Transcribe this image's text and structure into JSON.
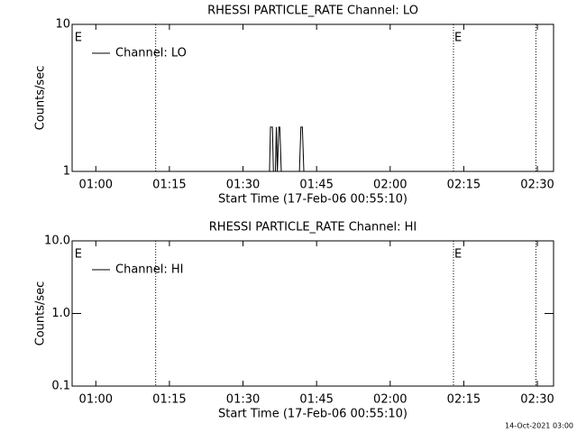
{
  "chart_data": [
    {
      "type": "line",
      "title": "RHESSI PARTICLE_RATE Channel: LO",
      "x_label": "Start Time (17-Feb-06 00:55:10)",
      "y_label": "Counts/sec",
      "log_y": true,
      "legend": "top-left",
      "xlim": [
        55.17,
        153.3
      ],
      "ylim": [
        1,
        10
      ],
      "xticks": [
        {
          "value": 60,
          "label": "01:00"
        },
        {
          "value": 75,
          "label": "01:15"
        },
        {
          "value": 90,
          "label": "01:30"
        },
        {
          "value": 105,
          "label": "01:45"
        },
        {
          "value": 120,
          "label": "02:00"
        },
        {
          "value": 135,
          "label": "02:15"
        },
        {
          "value": 150,
          "label": "02:30"
        }
      ],
      "yticks": [
        1,
        10
      ],
      "series": [
        {
          "name": "Channel: LO",
          "color": "#000000",
          "x": [
            95.4,
            95.6,
            96.0,
            96.2,
            96.6,
            96.8,
            97.0,
            97.3,
            97.5,
            97.8,
            101.5,
            101.8,
            102.1,
            102.4
          ],
          "values": [
            1,
            2,
            2,
            1,
            1,
            2,
            1,
            2,
            2,
            1,
            1,
            2,
            2,
            1
          ]
        }
      ],
      "vlines": [
        72.2,
        132.9,
        149.7
      ],
      "event_labels": [
        {
          "x": 55.5,
          "label": "E"
        },
        {
          "x": 132.9,
          "label": "E"
        }
      ]
    },
    {
      "type": "line",
      "title": "RHESSI PARTICLE_RATE Channel: HI",
      "x_label": "Start Time (17-Feb-06 00:55:10)",
      "y_label": "Counts/sec",
      "log_y": true,
      "legend": "top-left",
      "xlim": [
        55.17,
        153.3
      ],
      "ylim": [
        0.1,
        10
      ],
      "xticks": [
        {
          "value": 60,
          "label": "01:00"
        },
        {
          "value": 75,
          "label": "01:15"
        },
        {
          "value": 90,
          "label": "01:30"
        },
        {
          "value": 105,
          "label": "01:45"
        },
        {
          "value": 120,
          "label": "02:00"
        },
        {
          "value": 135,
          "label": "02:15"
        },
        {
          "value": 150,
          "label": "02:30"
        }
      ],
      "yticks": [
        0.1,
        {
          "value": 1,
          "label": "1.0"
        },
        {
          "value": 10,
          "label": "10.0"
        }
      ],
      "series": [
        {
          "name": "Channel: HI",
          "color": "#000000",
          "x": [],
          "values": []
        }
      ],
      "vlines": [
        72.2,
        132.9,
        149.7
      ],
      "event_labels": [
        {
          "x": 55.5,
          "label": "E"
        },
        {
          "x": 132.9,
          "label": "E"
        }
      ]
    }
  ],
  "footer": "14-Oct-2021 03:00"
}
